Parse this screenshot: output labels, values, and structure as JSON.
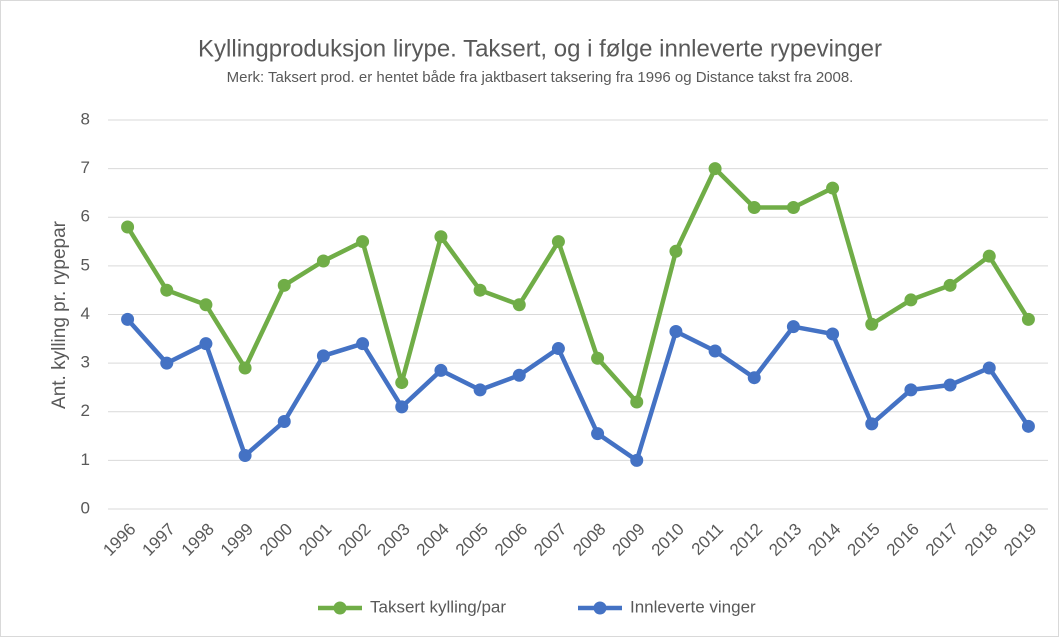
{
  "chart_data": {
    "type": "line",
    "title": "Kyllingproduksjon lirype. Taksert, og i følge innleverte rypevinger",
    "subtitle": "Merk: Taksert prod. er hentet både fra jaktbasert taksering fra 1996 og Distance takst fra 2008.",
    "y_label": "Ant. kylling pr. rypepar",
    "categories": [
      "1996",
      "1997",
      "1998",
      "1999",
      "2000",
      "2001",
      "2002",
      "2003",
      "2004",
      "2005",
      "2006",
      "2007",
      "2008",
      "2009",
      "2010",
      "2011",
      "2012",
      "2013",
      "2014",
      "2015",
      "2016",
      "2017",
      "2018",
      "2019"
    ],
    "series": [
      {
        "name": "Taksert kylling/par",
        "color": "#70ad47",
        "values": [
          5.8,
          4.5,
          4.2,
          2.9,
          4.6,
          5.1,
          5.5,
          2.6,
          5.6,
          4.5,
          4.2,
          5.5,
          3.1,
          2.2,
          5.3,
          7.0,
          6.2,
          6.2,
          6.6,
          3.8,
          4.3,
          4.6,
          5.2,
          3.9
        ]
      },
      {
        "name": "Innleverte vinger",
        "color": "#4472c4",
        "values": [
          3.9,
          3.0,
          3.4,
          1.1,
          1.8,
          3.15,
          3.4,
          2.1,
          2.85,
          2.45,
          2.75,
          3.3,
          1.55,
          1.0,
          3.65,
          3.25,
          2.7,
          3.75,
          3.6,
          1.75,
          2.45,
          2.55,
          2.9,
          1.7
        ]
      }
    ],
    "ylim": [
      0,
      8
    ],
    "yticks": [
      0,
      1,
      2,
      3,
      4,
      5,
      6,
      7,
      8
    ],
    "grid": true,
    "legend": "bottom"
  }
}
